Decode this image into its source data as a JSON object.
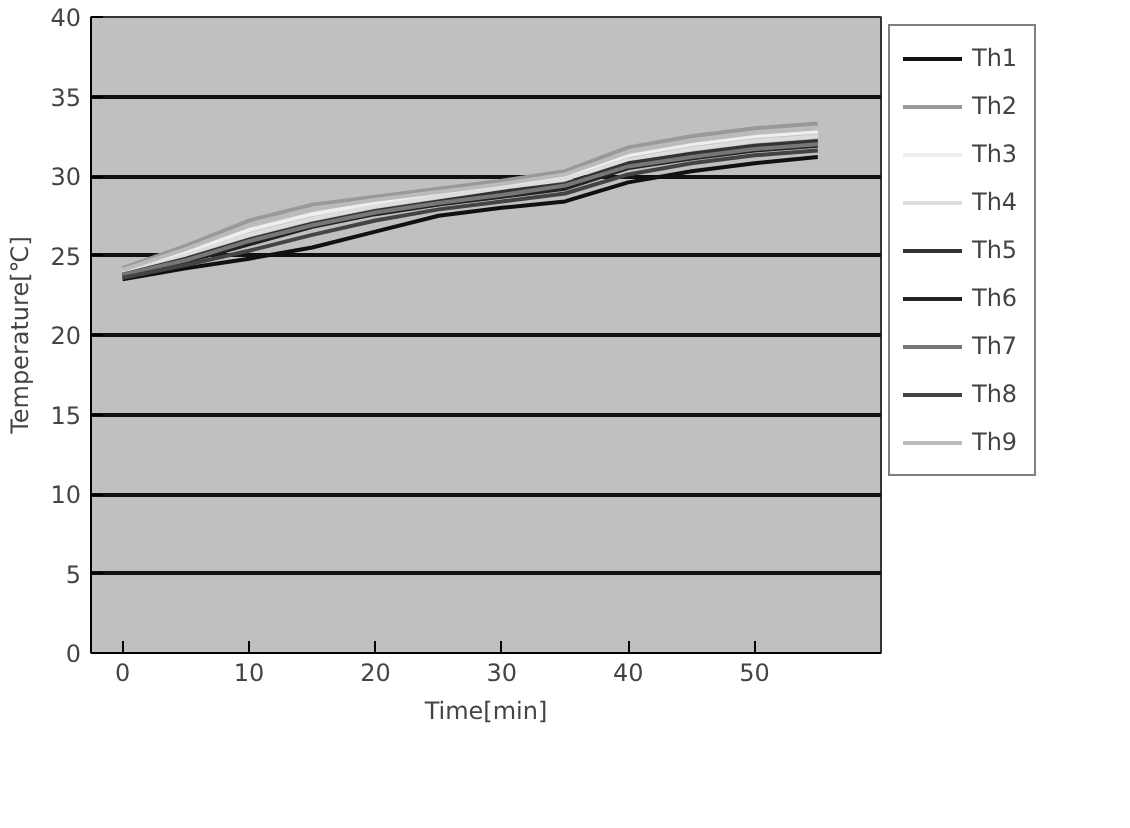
{
  "chart_data": {
    "type": "line",
    "xlabel": "Time[min]",
    "ylabel": "Temperature[℃]",
    "x": [
      0,
      5,
      10,
      15,
      20,
      25,
      30,
      35,
      40,
      45,
      50,
      55
    ],
    "xlim": [
      -2.5,
      60
    ],
    "xticks": [
      0,
      10,
      20,
      30,
      40,
      50
    ],
    "ylim": [
      0,
      40
    ],
    "yticks": [
      0,
      5,
      10,
      15,
      20,
      25,
      30,
      35,
      40
    ],
    "grid": "y",
    "legend": "right",
    "marker": "none",
    "line_style": "solid",
    "series": [
      {
        "name": "Th1",
        "color": "#111111",
        "values": [
          23.5,
          24.2,
          24.8,
          25.5,
          26.5,
          27.5,
          28.0,
          28.4,
          29.6,
          30.3,
          30.8,
          31.2
        ]
      },
      {
        "name": "Th2",
        "color": "#999999",
        "values": [
          24.2,
          25.6,
          27.2,
          28.2,
          28.7,
          29.2,
          29.7,
          30.3,
          31.8,
          32.5,
          33.0,
          33.3
        ]
      },
      {
        "name": "Th3",
        "color": "#eeeeee",
        "values": [
          24.0,
          25.2,
          26.6,
          27.6,
          28.3,
          28.9,
          29.4,
          30.0,
          31.3,
          32.0,
          32.5,
          32.8
        ]
      },
      {
        "name": "Th4",
        "color": "#dddddd",
        "values": [
          23.9,
          25.0,
          26.3,
          27.3,
          28.1,
          28.7,
          29.2,
          29.8,
          31.0,
          31.7,
          32.2,
          32.5
        ]
      },
      {
        "name": "Th5",
        "color": "#333333",
        "values": [
          23.8,
          24.8,
          26.0,
          27.0,
          27.8,
          28.4,
          29.0,
          29.5,
          30.8,
          31.4,
          31.9,
          32.2
        ]
      },
      {
        "name": "Th6",
        "color": "#222222",
        "values": [
          23.7,
          24.6,
          25.7,
          26.8,
          27.6,
          28.2,
          28.7,
          29.2,
          30.5,
          31.1,
          31.6,
          31.9
        ]
      },
      {
        "name": "Th7",
        "color": "#777777",
        "values": [
          23.8,
          24.7,
          25.9,
          26.9,
          27.7,
          28.3,
          28.8,
          29.4,
          30.6,
          31.2,
          31.7,
          32.0
        ]
      },
      {
        "name": "Th8",
        "color": "#444444",
        "values": [
          23.6,
          24.4,
          25.3,
          26.3,
          27.2,
          27.9,
          28.4,
          28.9,
          30.1,
          30.8,
          31.3,
          31.6
        ]
      },
      {
        "name": "Th9",
        "color": "#bbbbbb",
        "values": [
          24.1,
          25.4,
          26.9,
          27.9,
          28.5,
          29.0,
          29.5,
          30.1,
          31.5,
          32.2,
          32.7,
          33.0
        ]
      }
    ]
  }
}
